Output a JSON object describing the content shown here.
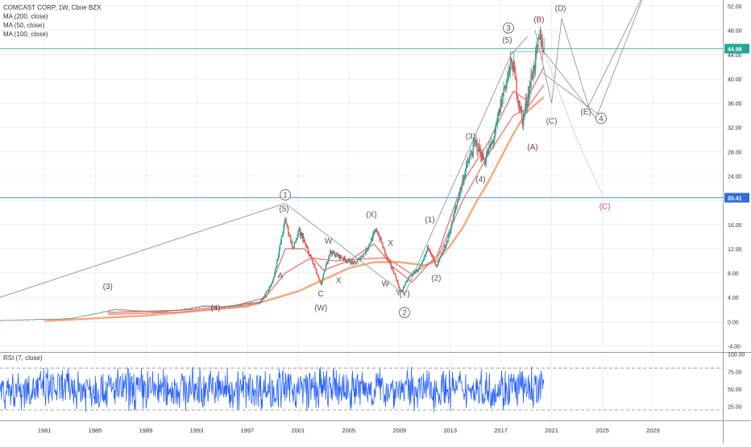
{
  "header": {
    "symbol_line": "COMCAST CORP, 1W, Cboe BZX",
    "indicators": [
      "MA (200, close)",
      "MA (50, close)",
      "MA (100, close)"
    ],
    "rsi_label": "RSI (7, close)"
  },
  "colors": {
    "candle_up": "#26a69a",
    "candle_down": "#ef5350",
    "ma200": "#f5a06a",
    "ma50": "#e05a5a",
    "ma100": "#f08080",
    "rsi_line": "#2962ff",
    "level_green": "#4db6ac",
    "level_blue": "#5b9bd5",
    "wave_line": "#8a8a8a",
    "wave_c_projection": "#e0457b",
    "price_badge_green": "#26a69a",
    "price_badge_blue": "#2f6fd6"
  },
  "chart_data": {
    "type": "candlestick",
    "title": "COMCAST CORP, 1W, Cboe BZX",
    "x_ticks": [
      "1981",
      "1985",
      "1989",
      "1993",
      "1997",
      "2001",
      "2005",
      "2009",
      "2013",
      "2017",
      "2021",
      "2025",
      "2029"
    ],
    "x_range": [
      1977.5,
      2034.5
    ],
    "y_ticks": [
      "52.00",
      "48.00",
      "44.00",
      "40.00",
      "36.00",
      "32.00",
      "28.00",
      "24.00",
      "20.00",
      "16.00",
      "12.00",
      "8.00",
      "4.00",
      "0.00",
      "-4.00"
    ],
    "y_range": [
      -5,
      53
    ],
    "horizontal_levels": [
      {
        "value": 44.98,
        "label": "44.98",
        "color": "green"
      },
      {
        "value": 20.41,
        "label": "20.41",
        "color": "blue"
      }
    ],
    "price_path": [
      [
        1977.5,
        0.2
      ],
      [
        1983,
        0.5
      ],
      [
        1985,
        1.3
      ],
      [
        1986.5,
        2.0
      ],
      [
        1988,
        1.8
      ],
      [
        1990,
        1.6
      ],
      [
        1992,
        2.0
      ],
      [
        1993.5,
        2.6
      ],
      [
        1995,
        2.4
      ],
      [
        1996.5,
        2.8
      ],
      [
        1998,
        3.2
      ],
      [
        1999,
        6.5
      ],
      [
        2000,
        16.8
      ],
      [
        2000.6,
        12.0
      ],
      [
        2001.1,
        15.0
      ],
      [
        2002.3,
        9.0
      ],
      [
        2002.8,
        6.0
      ],
      [
        2003.5,
        11.5
      ],
      [
        2004.5,
        10.5
      ],
      [
        2005.5,
        9.5
      ],
      [
        2006.3,
        11.5
      ],
      [
        2007.2,
        15.2
      ],
      [
        2008.0,
        10.5
      ],
      [
        2008.6,
        8.0
      ],
      [
        2009.1,
        4.8
      ],
      [
        2009.8,
        7.5
      ],
      [
        2010.7,
        9.0
      ],
      [
        2011.3,
        12.5
      ],
      [
        2011.9,
        8.8
      ],
      [
        2012.8,
        13.5
      ],
      [
        2013.6,
        20.0
      ],
      [
        2014.2,
        25.0
      ],
      [
        2015.0,
        29.5
      ],
      [
        2015.7,
        26.5
      ],
      [
        2016.5,
        30.5
      ],
      [
        2017.2,
        38.0
      ],
      [
        2017.9,
        43.0
      ],
      [
        2018.3,
        37.5
      ],
      [
        2018.7,
        33.0
      ],
      [
        2019.2,
        38.0
      ],
      [
        2019.8,
        44.0
      ],
      [
        2020.1,
        47.0
      ],
      [
        2020.4,
        44.5
      ]
    ],
    "moving_averages": [
      {
        "name": "MA (200, close)",
        "values": [
          [
            1981,
            0.1
          ],
          [
            1989,
            1.0
          ],
          [
            1997,
            2.5
          ],
          [
            2001,
            5.0
          ],
          [
            2005,
            8.8
          ],
          [
            2007,
            9.8
          ],
          [
            2009,
            9.8
          ],
          [
            2011,
            9.3
          ],
          [
            2012,
            10.0
          ],
          [
            2013,
            12.5
          ],
          [
            2014,
            15.5
          ],
          [
            2015,
            19.5
          ],
          [
            2016,
            23.0
          ],
          [
            2017,
            27.0
          ],
          [
            2018,
            31.0
          ],
          [
            2019,
            34.5
          ],
          [
            2020.4,
            37.0
          ]
        ]
      },
      {
        "name": "MA (100, close)",
        "values": [
          [
            1986,
            1.2
          ],
          [
            1992,
            1.6
          ],
          [
            1996,
            2.4
          ],
          [
            1998,
            3.0
          ],
          [
            2000,
            8.0
          ],
          [
            2002,
            10.5
          ],
          [
            2004,
            10.0
          ],
          [
            2006,
            10.3
          ],
          [
            2008,
            10.5
          ],
          [
            2010,
            7.8
          ],
          [
            2012,
            10.5
          ],
          [
            2014,
            20.0
          ],
          [
            2016,
            27.5
          ],
          [
            2018,
            34.0
          ],
          [
            2019,
            35.0
          ],
          [
            2020.4,
            39.0
          ]
        ]
      },
      {
        "name": "MA (50, close)",
        "values": [
          [
            1986,
            1.5
          ],
          [
            1992,
            1.9
          ],
          [
            1996,
            2.6
          ],
          [
            1998.5,
            4.0
          ],
          [
            2000,
            12.0
          ],
          [
            2001.5,
            12.0
          ],
          [
            2003,
            8.5
          ],
          [
            2005,
            10.0
          ],
          [
            2007,
            12.8
          ],
          [
            2008.5,
            9.0
          ],
          [
            2010,
            6.5
          ],
          [
            2012,
            11.0
          ],
          [
            2014,
            23.0
          ],
          [
            2016,
            29.5
          ],
          [
            2018,
            38.0
          ],
          [
            2019,
            36.5
          ],
          [
            2020.4,
            42.0
          ]
        ]
      }
    ],
    "wave_paths": [
      [
        [
          1977.5,
          4.0
        ],
        [
          2000.0,
          19.5
        ],
        [
          2009.4,
          4.5
        ],
        [
          2017.9,
          44.5
        ],
        [
          2020.4,
          44.5
        ],
        [
          2024.5,
          33.5
        ],
        [
          2028.5,
          55.0
        ]
      ],
      [
        [
          2017.9,
          44.2
        ],
        [
          2019.1,
          47.0
        ]
      ],
      [
        [
          2019.7,
          48.0
        ],
        [
          2021.0,
          36.0
        ],
        [
          2021.8,
          50.0
        ],
        [
          2023.9,
          35.5
        ],
        [
          2028.5,
          55.0
        ]
      ],
      [
        [
          2020.3,
          41.0
        ],
        [
          2024.8,
          34.0
        ]
      ]
    ],
    "wave_projection_c": [
      [
        2020.4,
        44.5
      ],
      [
        2022.8,
        31.0
      ],
      [
        2025.0,
        20.9
      ]
    ],
    "wave_labels": [
      {
        "text": "1",
        "x": 2000.0,
        "y": 20.9,
        "circled": true
      },
      {
        "text": "(5)",
        "x": 1999.9,
        "y": 18.6,
        "circled": false
      },
      {
        "text": "B",
        "x": 2001.3,
        "y": 14.2,
        "circled": false
      },
      {
        "text": "A",
        "x": 1999.6,
        "y": 7.6,
        "circled": false
      },
      {
        "text": "W",
        "x": 2003.4,
        "y": 13.3,
        "circled": false
      },
      {
        "text": "C",
        "x": 2002.8,
        "y": 4.6,
        "circled": false
      },
      {
        "text": "(W)",
        "x": 2002.8,
        "y": 2.3,
        "circled": false
      },
      {
        "text": "X",
        "x": 2004.2,
        "y": 6.8,
        "circled": false
      },
      {
        "text": "(X)",
        "x": 2006.8,
        "y": 17.7,
        "circled": false
      },
      {
        "text": "X",
        "x": 2008.3,
        "y": 13.0,
        "circled": false
      },
      {
        "text": "W",
        "x": 2007.9,
        "y": 6.3,
        "circled": false
      },
      {
        "text": "Y",
        "x": 2008.9,
        "y": 4.8,
        "circled": false
      },
      {
        "text": "(Y)",
        "x": 2009.4,
        "y": 4.6,
        "circled": false
      },
      {
        "text": "2",
        "x": 2009.4,
        "y": 1.5,
        "circled": true
      },
      {
        "text": "(1)",
        "x": 2011.4,
        "y": 16.8,
        "circled": false
      },
      {
        "text": "(2)",
        "x": 2011.9,
        "y": 7.2,
        "circled": false
      },
      {
        "text": "(3)",
        "x": 2014.6,
        "y": 30.6,
        "circled": false
      },
      {
        "text": "(4)",
        "x": 2015.4,
        "y": 23.5,
        "circled": false
      },
      {
        "text": "3",
        "x": 2017.6,
        "y": 48.4,
        "circled": true
      },
      {
        "text": "(5)",
        "x": 2017.5,
        "y": 46.4,
        "circled": false
      },
      {
        "text": "(B)",
        "x": 2020.0,
        "y": 49.8,
        "circled": false
      },
      {
        "text": "(D)",
        "x": 2021.7,
        "y": 51.7,
        "circled": false
      },
      {
        "text": "(A)",
        "x": 2019.5,
        "y": 28.8,
        "circled": false
      },
      {
        "text": "(C)",
        "x": 2021.0,
        "y": 33.1,
        "circled": false
      },
      {
        "text": "(E)",
        "x": 2023.7,
        "y": 34.6,
        "circled": false
      },
      {
        "text": "4",
        "x": 2024.9,
        "y": 33.5,
        "circled": true
      },
      {
        "text": "(C)",
        "x": 2025.2,
        "y": 19.0,
        "circled": false
      },
      {
        "text": "(3)",
        "x": 1986.0,
        "y": 5.8,
        "circled": false
      },
      {
        "text": "(4)",
        "x": 1994.5,
        "y": 2.3,
        "circled": false
      }
    ],
    "rsi": {
      "name": "RSI (7, close)",
      "y_ticks": [
        "100.00",
        "75.00",
        "50.00",
        "25.00"
      ],
      "y_range": [
        5,
        102
      ],
      "upper_band": 80,
      "lower_band": 20
    }
  }
}
